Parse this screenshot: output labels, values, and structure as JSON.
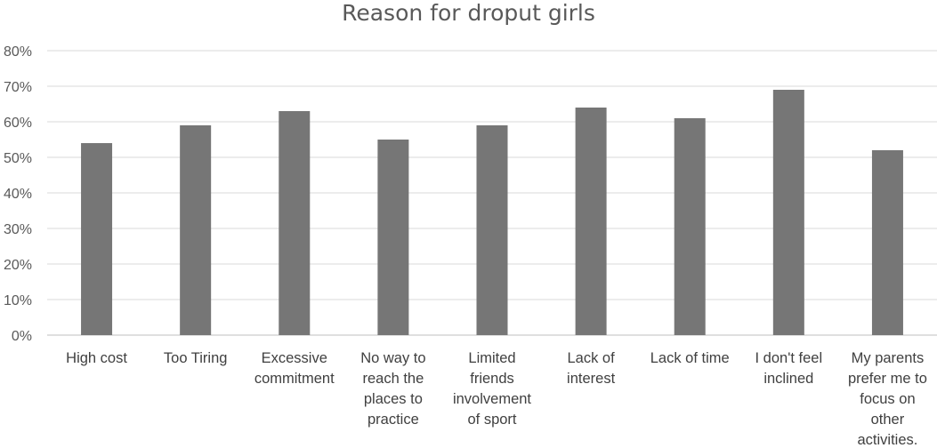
{
  "chart_data": {
    "type": "bar",
    "title": "Reason for droput girls",
    "xlabel": "",
    "ylabel": "",
    "categories": [
      "High cost",
      "Too Tiring",
      "Excessive commitment",
      "No way to reach the places to practice",
      "Limited friends involvement of sport",
      "Lack of interest",
      "Lack of time",
      "I don't feel inclined",
      "My parents prefer me to focus on other activities."
    ],
    "category_lines": [
      [
        "High cost"
      ],
      [
        "Too Tiring"
      ],
      [
        "Excessive",
        "commitment"
      ],
      [
        "No way to",
        "reach the",
        "places to",
        "practice"
      ],
      [
        "Limited",
        "friends",
        "involvement",
        "of sport"
      ],
      [
        "Lack of",
        "interest"
      ],
      [
        "Lack of time"
      ],
      [
        "I don't feel",
        "inclined"
      ],
      [
        "My parents",
        "prefer me to",
        "focus on",
        "other",
        "activities."
      ]
    ],
    "values": [
      0.54,
      0.59,
      0.63,
      0.55,
      0.59,
      0.64,
      0.61,
      0.69,
      0.52
    ],
    "ylim": [
      0,
      0.8
    ],
    "yticks": [
      "0%",
      "10%",
      "20%",
      "30%",
      "40%",
      "50%",
      "60%",
      "70%",
      "80%"
    ],
    "grid": true,
    "legend": "none",
    "colors": {
      "bar": "#767676",
      "grid": "#d9d9d9",
      "axis": "#bfbfbf"
    }
  }
}
